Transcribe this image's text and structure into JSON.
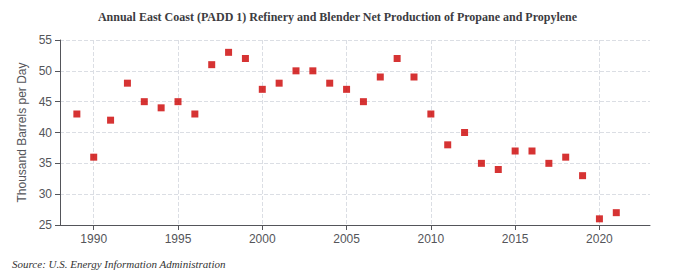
{
  "chart_data": {
    "type": "scatter",
    "title": "Annual East Coast (PADD 1) Refinery and Blender Net Production of Propane and Propylene",
    "ylabel": "Thousand Barrels per Day",
    "annotations": [
      "Source: U.S. Energy Information Administration"
    ],
    "x": [
      1989,
      1990,
      1991,
      1992,
      1993,
      1994,
      1995,
      1996,
      1997,
      1998,
      1999,
      2000,
      2001,
      2002,
      2003,
      2004,
      2005,
      2006,
      2007,
      2008,
      2009,
      2010,
      2011,
      2012,
      2013,
      2014,
      2015,
      2016,
      2017,
      2018,
      2019,
      2020,
      2021
    ],
    "values": [
      43,
      36,
      42,
      48,
      45,
      44,
      45,
      43,
      51,
      53,
      52,
      47,
      48,
      50,
      50,
      48,
      47,
      45,
      49,
      52,
      49,
      43,
      38,
      40,
      35,
      34,
      37,
      37,
      35,
      36,
      33,
      26,
      27
    ],
    "xlim": [
      1988,
      2023
    ],
    "xticks": [
      1990,
      1995,
      2000,
      2005,
      2010,
      2015,
      2020
    ],
    "ylim": [
      25,
      55
    ],
    "yticks": [
      25,
      30,
      35,
      40,
      45,
      50,
      55
    ],
    "color": "#cc0000",
    "marker": "square",
    "grid": true
  }
}
